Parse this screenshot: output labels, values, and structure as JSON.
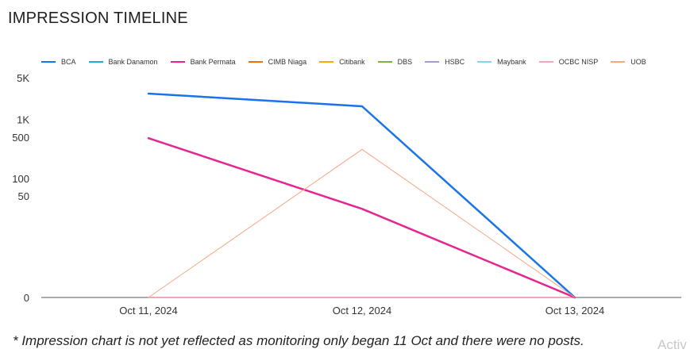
{
  "title": "IMPRESSION TIMELINE",
  "footnote": "* Impression chart is not yet reflected as monitoring only began 11 Oct and there were no posts.",
  "watermark": "Activ",
  "chart_data": {
    "type": "line",
    "title": "IMPRESSION TIMELINE",
    "xlabel": "",
    "ylabel": "",
    "x": [
      "Oct 11, 2024",
      "Oct 12, 2024",
      "Oct 13, 2024"
    ],
    "y_scale": "log",
    "y_ticks": [
      0,
      50,
      100,
      500,
      1000,
      5000
    ],
    "y_tick_labels": [
      "0",
      "50",
      "100",
      "500",
      "1K",
      "5K"
    ],
    "ylim": [
      0,
      5000
    ],
    "grid": false,
    "legend_position": "top",
    "series": [
      {
        "name": "BCA",
        "color": "#1a73e8",
        "width": 2.5,
        "values": [
          2700,
          1650,
          0
        ]
      },
      {
        "name": "Bank Danamon",
        "color": "#12b5cb",
        "width": 2,
        "values": [
          0,
          0,
          0
        ]
      },
      {
        "name": "Bank Permata",
        "color": "#e52592",
        "width": 2.5,
        "values": [
          480,
          30,
          0
        ]
      },
      {
        "name": "CIMB Niaga",
        "color": "#e8710a",
        "width": 2,
        "values": [
          0,
          0,
          0
        ]
      },
      {
        "name": "Citibank",
        "color": "#f9ab00",
        "width": 2,
        "values": [
          0,
          0,
          0
        ]
      },
      {
        "name": "DBS",
        "color": "#7cb342",
        "width": 2,
        "values": [
          0,
          0,
          0
        ]
      },
      {
        "name": "HSBC",
        "color": "#9e9ed6",
        "width": 2,
        "values": [
          0,
          0,
          0
        ]
      },
      {
        "name": "Maybank",
        "color": "#8ad4eb",
        "width": 2,
        "values": [
          0,
          0,
          0
        ]
      },
      {
        "name": "OCBC NISP",
        "color": "#f4a6c0",
        "width": 2,
        "values": [
          0,
          0,
          0
        ]
      },
      {
        "name": "UOB",
        "color": "#f4a882",
        "width": 1,
        "values": [
          0,
          310,
          0
        ]
      }
    ]
  }
}
